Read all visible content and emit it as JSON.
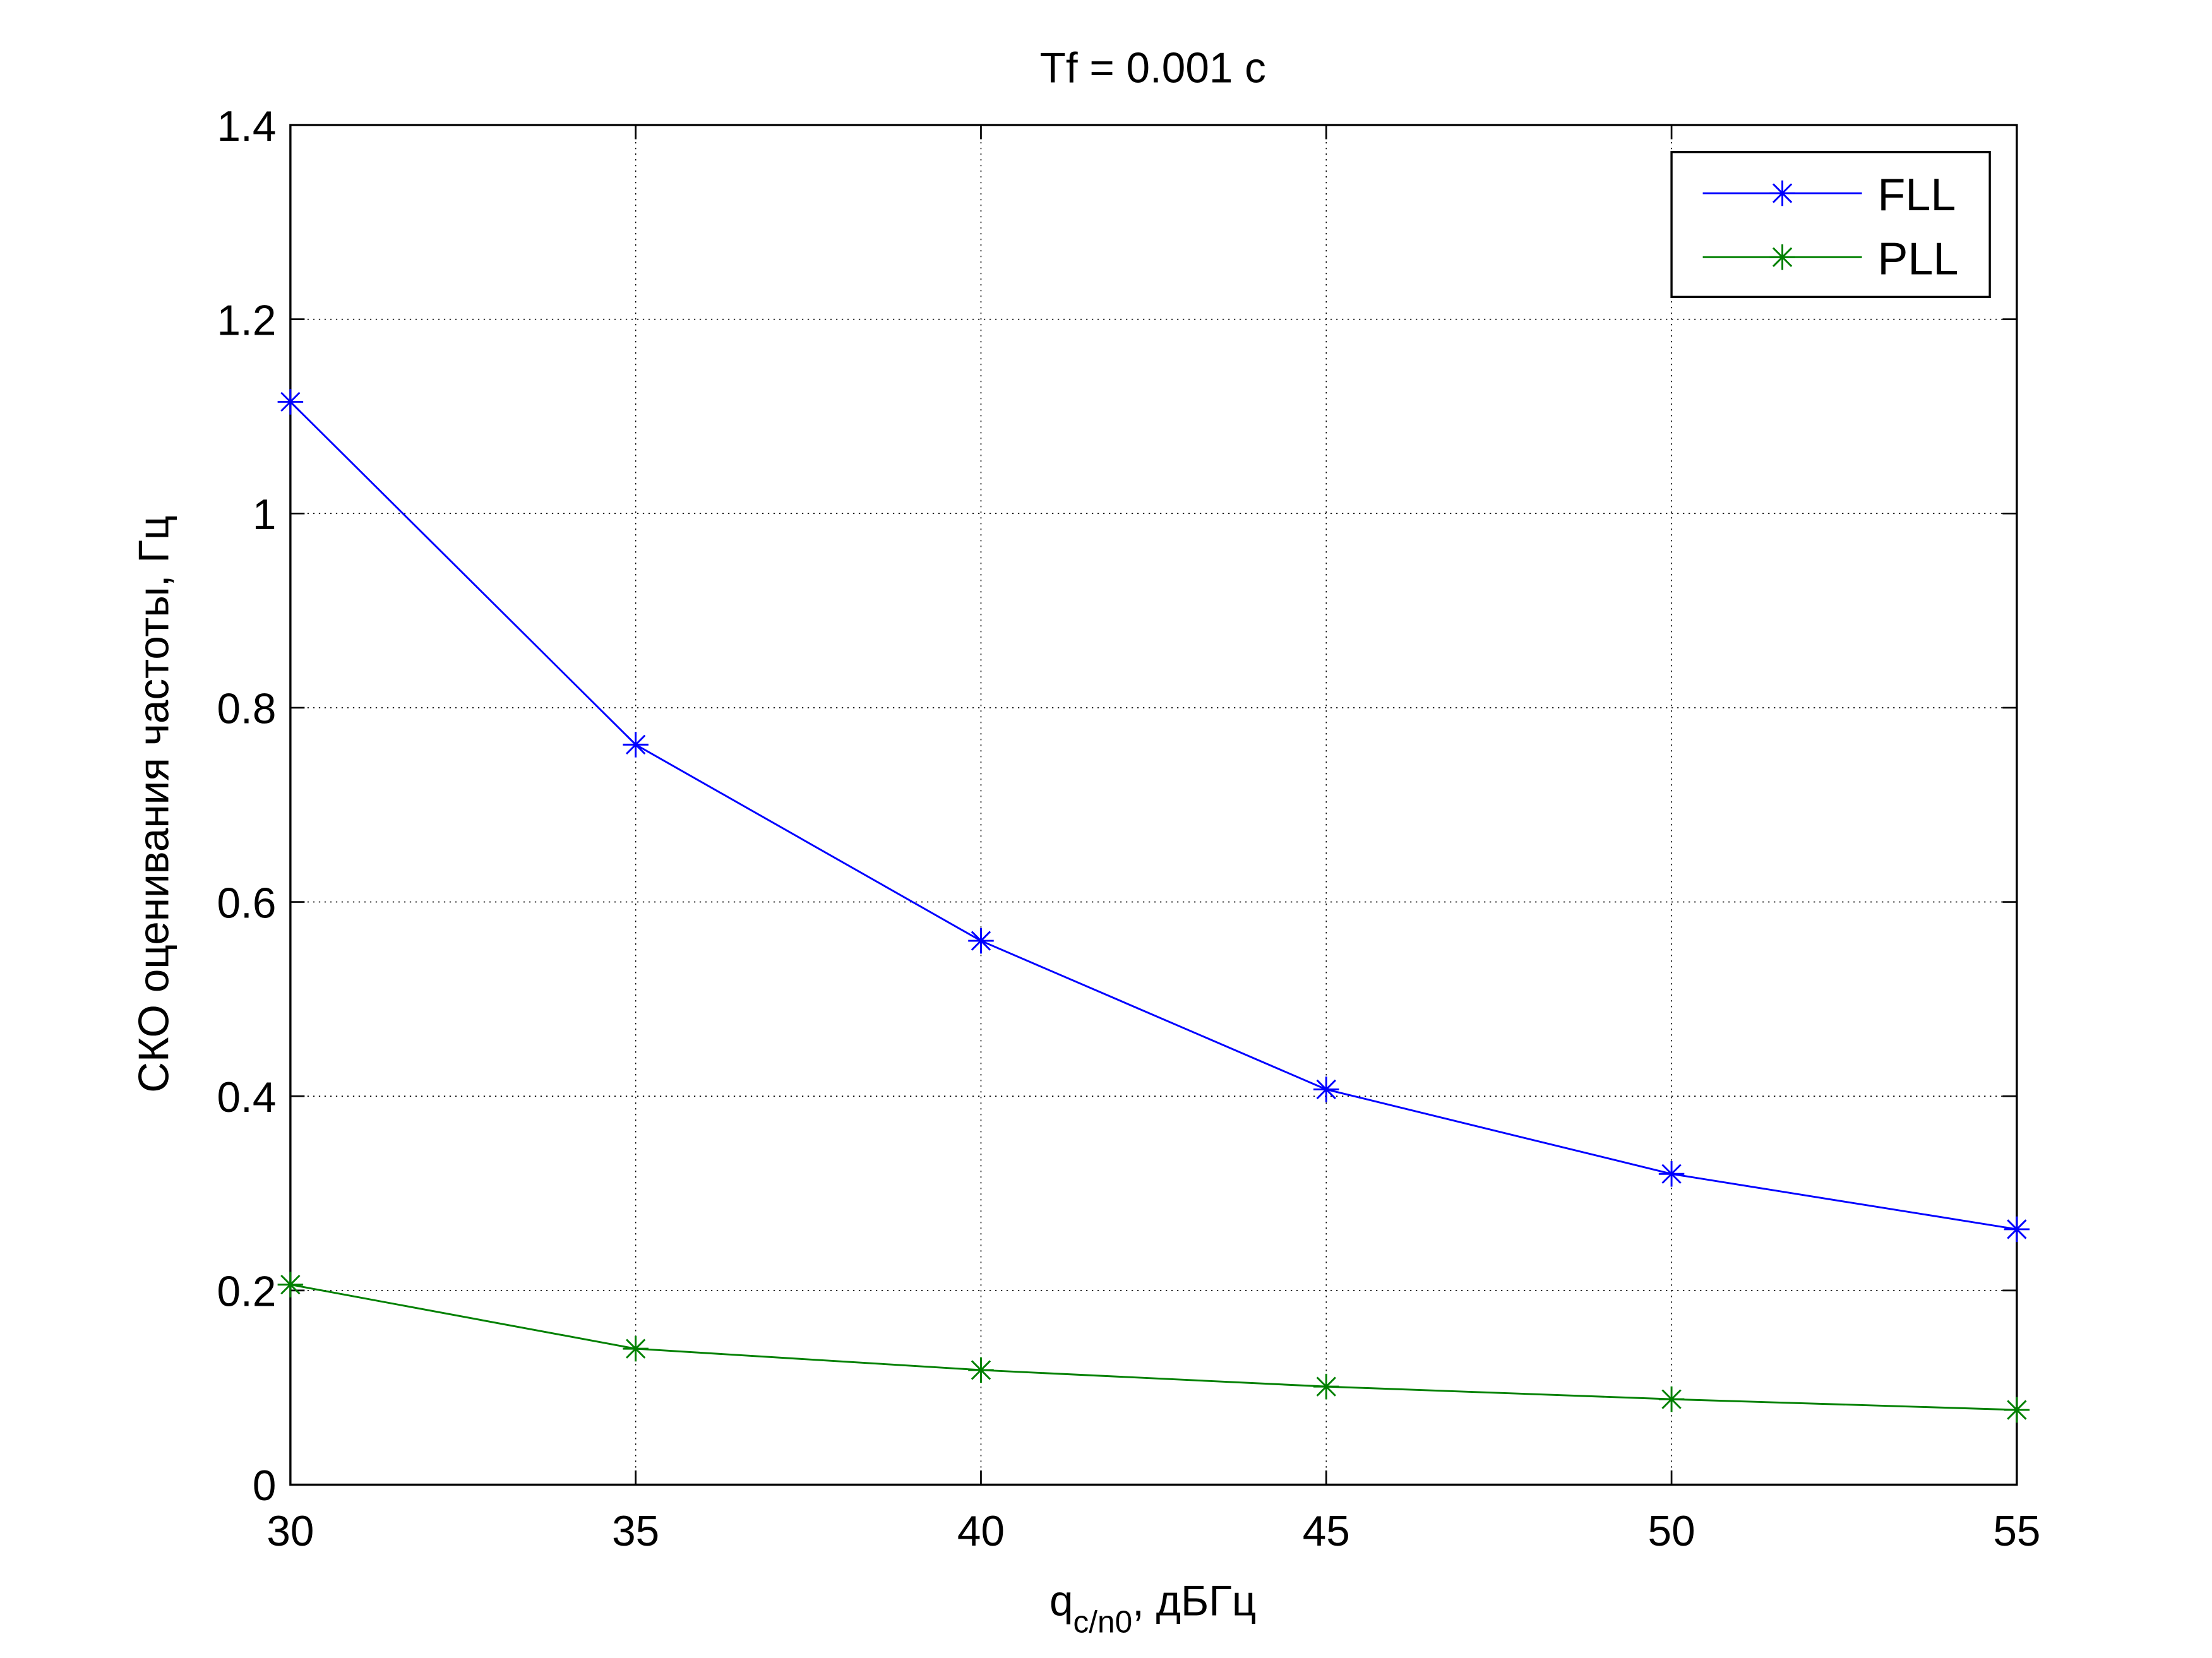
{
  "chart_data": {
    "type": "line",
    "title": "Tf = 0.001 c",
    "xlabel_main": "q",
    "xlabel_sub": "c/n0",
    "xlabel_rest": ", дБГц",
    "ylabel": "СКО оценивания частоты, Гц",
    "x": [
      30,
      35,
      40,
      45,
      50,
      55
    ],
    "xlim": [
      30,
      55
    ],
    "ylim": [
      0,
      1.4
    ],
    "xticks": [
      "30",
      "35",
      "40",
      "45",
      "50",
      "55"
    ],
    "yticks": [
      "0",
      "0.2",
      "0.4",
      "0.6",
      "0.8",
      "1",
      "1.2",
      "1.4"
    ],
    "grid": true,
    "legend_position": "top-right",
    "series": [
      {
        "name": "FLL",
        "color": "#0000ff",
        "marker": "asterisk",
        "values": [
          1.115,
          0.762,
          0.56,
          0.407,
          0.32,
          0.263
        ]
      },
      {
        "name": "PLL",
        "color": "#008000",
        "marker": "asterisk",
        "values": [
          0.206,
          0.14,
          0.118,
          0.101,
          0.088,
          0.077
        ]
      }
    ]
  }
}
